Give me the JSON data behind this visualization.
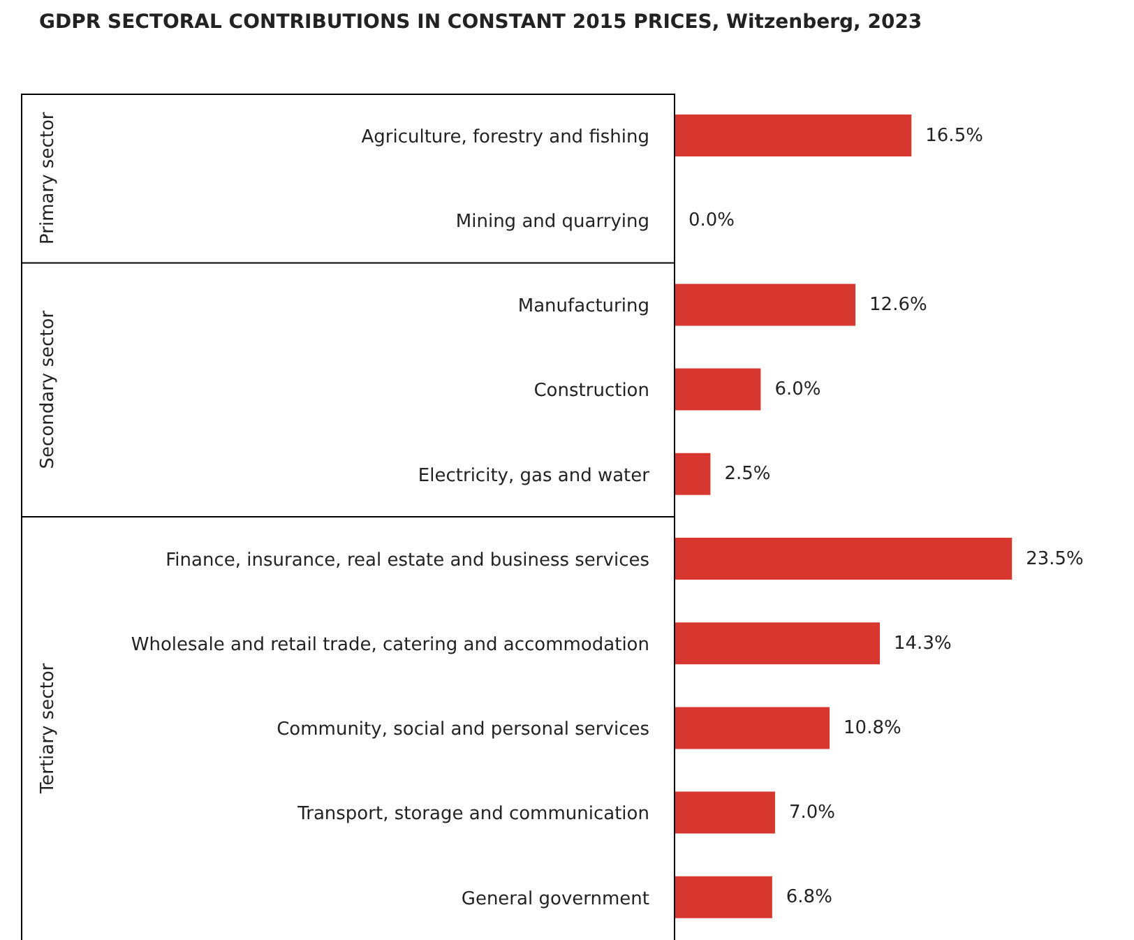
{
  "chart_data": {
    "type": "bar",
    "orientation": "horizontal",
    "title": "GDPR SECTORAL CONTRIBUTIONS IN CONSTANT 2015 PRICES, Witzenberg, 2023",
    "categories": [
      "Agriculture, forestry and fishing",
      "Mining and quarrying",
      "Manufacturing",
      "Construction",
      "Electricity, gas and water",
      "Finance, insurance, real estate and business services",
      "Wholesale and retail trade, catering and accommodation",
      "Community, social and personal services",
      "Transport, storage and communication",
      "General government"
    ],
    "values": [
      16.5,
      0.0,
      12.6,
      6.0,
      2.5,
      23.5,
      14.3,
      10.8,
      7.0,
      6.8
    ],
    "value_labels": [
      "16.5%",
      "0.0%",
      "12.6%",
      "6.0%",
      "2.5%",
      "23.5%",
      "14.3%",
      "10.8%",
      "7.0%",
      "6.8%"
    ],
    "color": "#d7372e",
    "annotations": [
      "Primary sector",
      "Secondary sector",
      "Tertiary sector"
    ]
  }
}
